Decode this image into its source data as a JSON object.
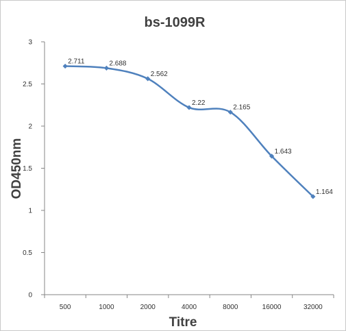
{
  "chart_data": {
    "type": "line",
    "title": "bs-1099R",
    "xlabel": "Titre",
    "ylabel": "OD450nm",
    "categories": [
      "500",
      "1000",
      "2000",
      "4000",
      "8000",
      "16000",
      "32000"
    ],
    "series": [
      {
        "values": [
          2.711,
          2.688,
          2.562,
          2.22,
          2.165,
          1.643,
          1.164
        ],
        "labels": [
          "2.711",
          "2.688",
          "2.562",
          "2.22",
          "2.165",
          "1.643",
          "1.164"
        ]
      }
    ],
    "ylim": [
      0,
      3
    ],
    "yticks": [
      "0",
      "0.5",
      "1",
      "1.5",
      "2",
      "2.5",
      "3"
    ],
    "grid": false,
    "legend": "none",
    "colors": {
      "line": "#4f81bd",
      "axis": "#868686"
    }
  }
}
